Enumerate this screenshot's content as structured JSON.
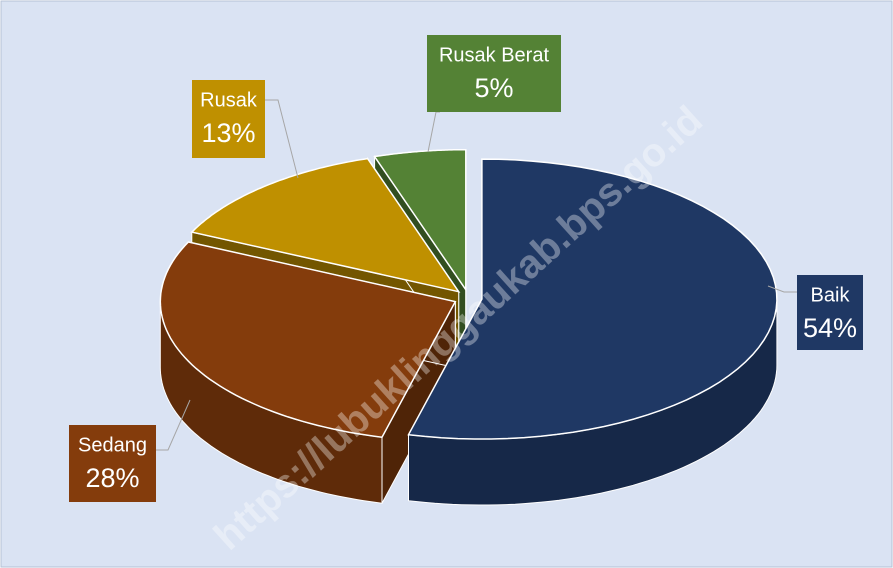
{
  "chart_data": {
    "type": "pie",
    "categories": [
      "Baik",
      "Sedang",
      "Rusak",
      "Rusak Berat"
    ],
    "values": [
      54,
      28,
      13,
      5
    ],
    "value_labels": [
      "54%",
      "28%",
      "13%",
      "5%"
    ],
    "colors": [
      "#1f3864",
      "#843c0c",
      "#bf9000",
      "#548235"
    ],
    "watermark": "https://lubuklinggaukab.bps.go.id"
  }
}
